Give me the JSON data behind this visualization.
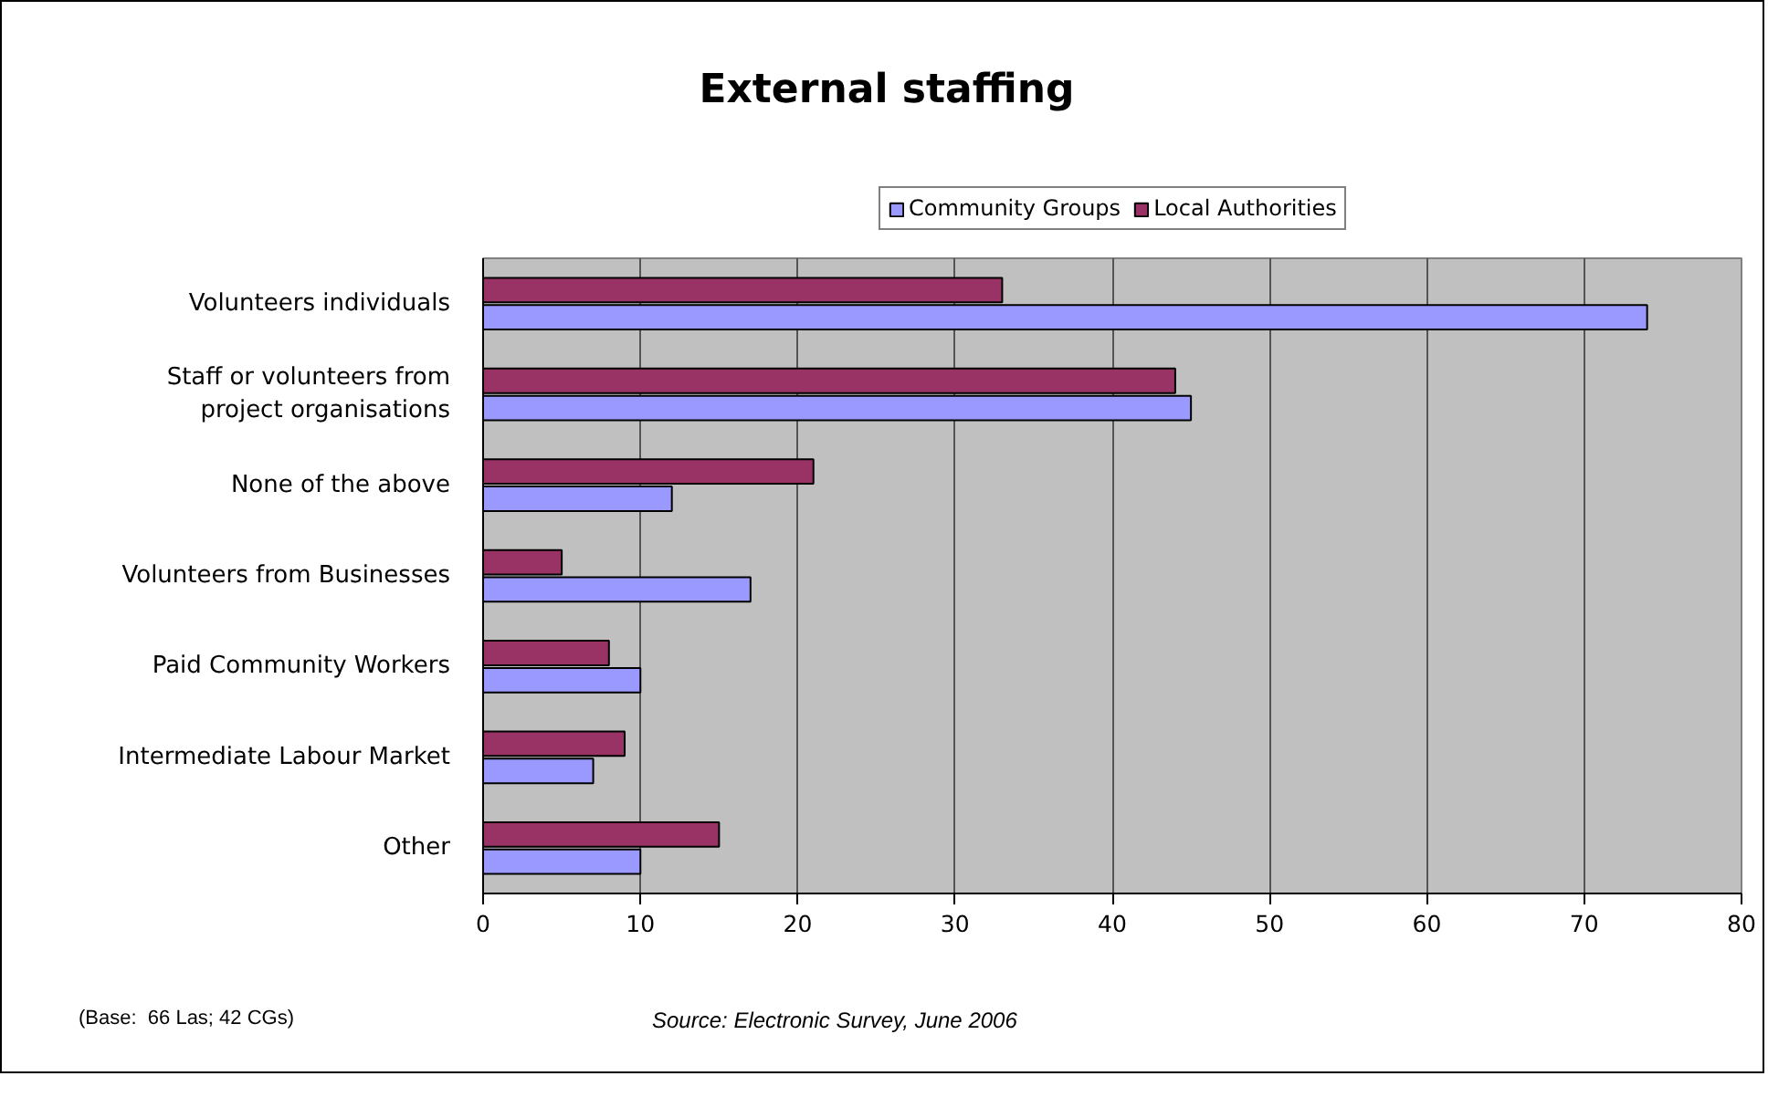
{
  "chart_data": {
    "type": "bar",
    "orientation": "horizontal",
    "title": "External staffing",
    "categories": [
      "Volunteers individuals",
      "Staff or volunteers from project organisations",
      "None of the above",
      "Volunteers from Businesses",
      "Paid Community Workers",
      "Intermediate Labour Market",
      "Other"
    ],
    "series": [
      {
        "name": "Community Groups",
        "color": "#9999ff",
        "values": [
          74,
          45,
          12,
          17,
          10,
          7,
          10
        ]
      },
      {
        "name": "Local Authorities",
        "color": "#993366",
        "values": [
          33,
          44,
          21,
          5,
          8,
          9,
          15
        ]
      }
    ],
    "xlim": [
      0,
      80
    ],
    "xticks": [
      0,
      10,
      20,
      30,
      40,
      50,
      60,
      70,
      80
    ],
    "grid": "x",
    "legend": "top",
    "annotations": [
      "(Base:  66 Las; 42 CGs)",
      "Source: Electronic Survey, June 2006"
    ]
  }
}
